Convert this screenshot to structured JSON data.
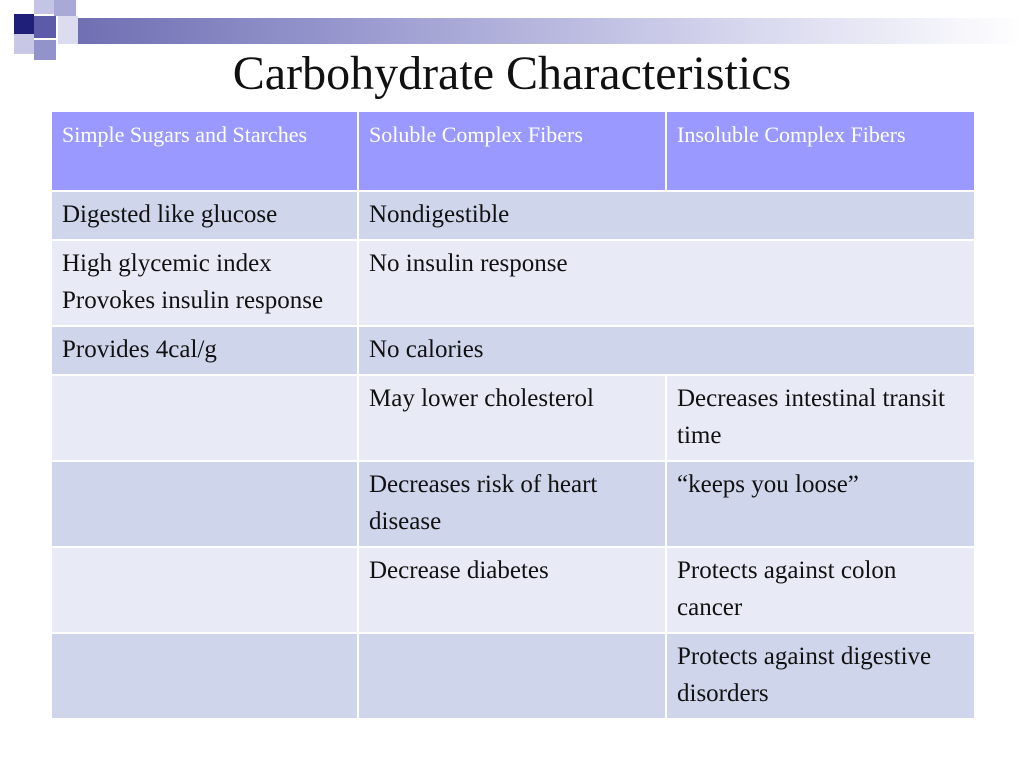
{
  "title": "Carbohydrate Characteristics",
  "table": {
    "headers": [
      "Simple Sugars and Starches",
      "Soluble Complex Fibers",
      "Insoluble Complex Fibers"
    ],
    "rows": [
      {
        "c1": "Digested like glucose",
        "span": "Nondigestible"
      },
      {
        "c1_lines": [
          "High glycemic index",
          "Provokes insulin response"
        ],
        "span": "No insulin response"
      },
      {
        "c1": "Provides 4cal/g",
        "span": "No calories"
      },
      {
        "c1": "",
        "c2": "May lower cholesterol",
        "c3": "Decreases intestinal transit time"
      },
      {
        "c1": "",
        "c2": "Decreases risk of heart disease",
        "c3": "“keeps you loose”"
      },
      {
        "c1": "",
        "c2": "Decrease diabetes",
        "c3": "Protects against colon cancer"
      },
      {
        "c1": "",
        "c2": "",
        "c3": "Protects against digestive disorders"
      }
    ]
  },
  "colors": {
    "header_bg": "#9999ff",
    "row_dark": "#cfd5ea",
    "row_light": "#e8ebf5",
    "accent_dark": "#1f1f7a"
  }
}
